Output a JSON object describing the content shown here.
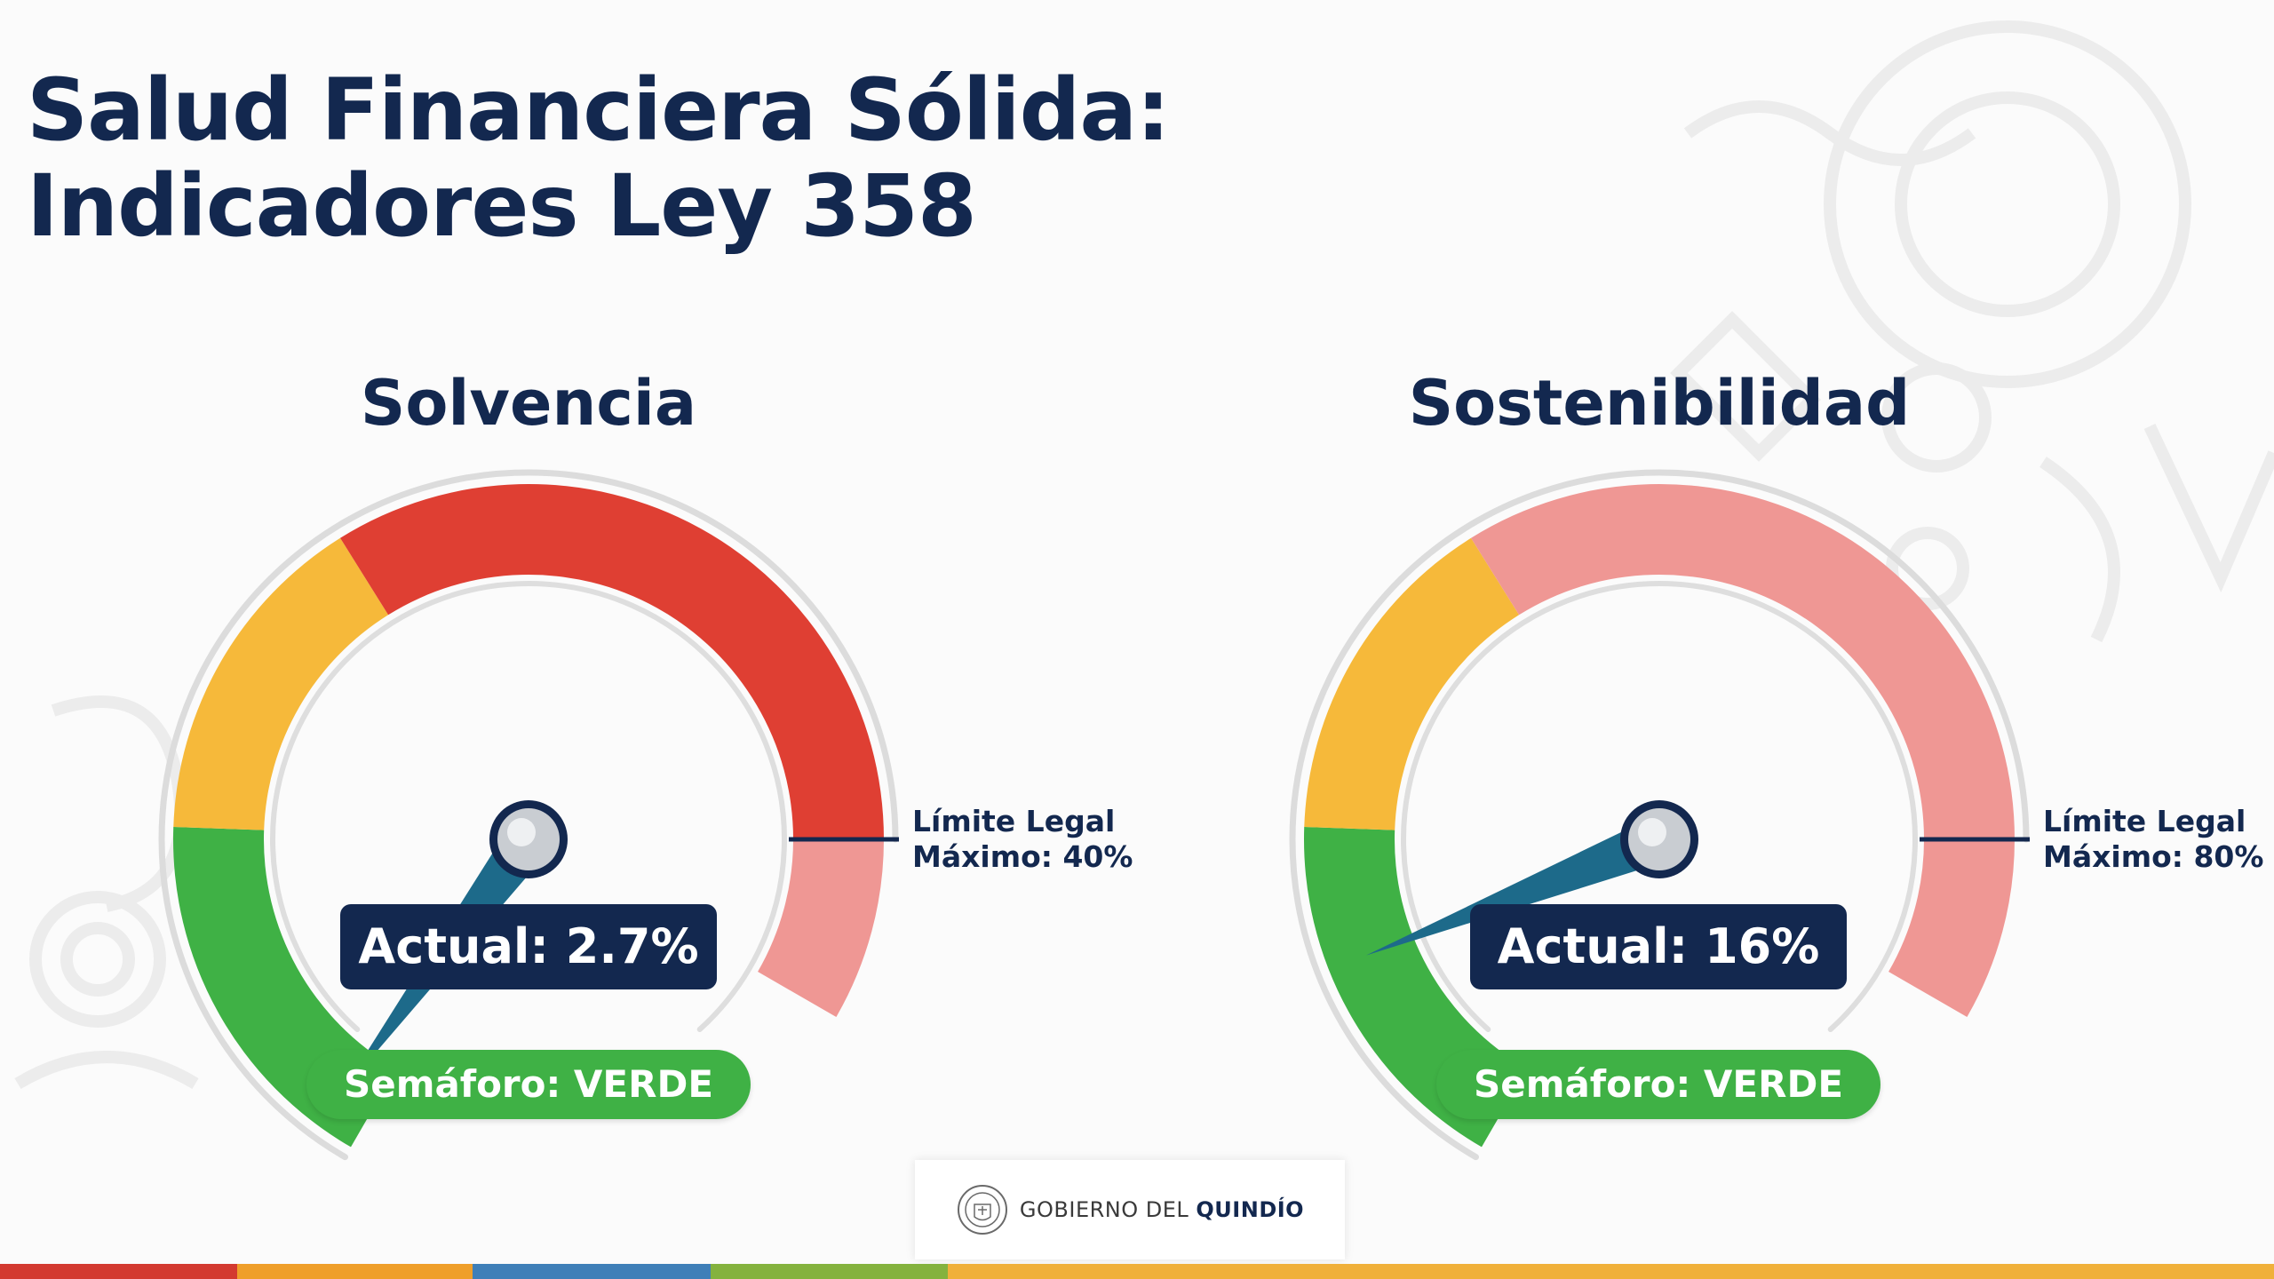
{
  "title": {
    "line1": "Salud Financiera Sólida:",
    "line2": "Indicadores Ley 358"
  },
  "chart_data": [
    {
      "type": "gauge",
      "title": "Solvencia",
      "value": 2.7,
      "unit": "%",
      "actual_label": "Actual: 2.7%",
      "limit_value": 40,
      "limit_label_line1": "Límite Legal",
      "limit_label_line2": "Máximo: 40%",
      "status_label": "Semáforo: VERDE",
      "zones": [
        {
          "name": "green",
          "color": "#3fb145"
        },
        {
          "name": "yellow",
          "color": "#f6b93a"
        },
        {
          "name": "red",
          "color": "#df3f33"
        },
        {
          "name": "exceeded",
          "color": "#ef9794"
        }
      ]
    },
    {
      "type": "gauge",
      "title": "Sostenibilidad",
      "value": 16,
      "unit": "%",
      "actual_label": "Actual: 16%",
      "limit_value": 80,
      "limit_label_line1": "Límite Legal",
      "limit_label_line2": "Máximo: 80%",
      "status_label": "Semáforo: VERDE",
      "zones": [
        {
          "name": "green",
          "color": "#3fb145"
        },
        {
          "name": "yellow",
          "color": "#f6b93a"
        },
        {
          "name": "red",
          "color": "#ef9794"
        },
        {
          "name": "exceeded",
          "color": "#ef9794"
        }
      ]
    }
  ],
  "footer": {
    "prefix": "GOBIERNO DEL ",
    "name": "QUINDÍO"
  },
  "colors": {
    "navy": "#13284f",
    "needle": "#1d6a8a",
    "bar": [
      "#d33a30",
      "#ef9f2a",
      "#3f7fb8",
      "#84b23e",
      "#f0b03a"
    ]
  }
}
